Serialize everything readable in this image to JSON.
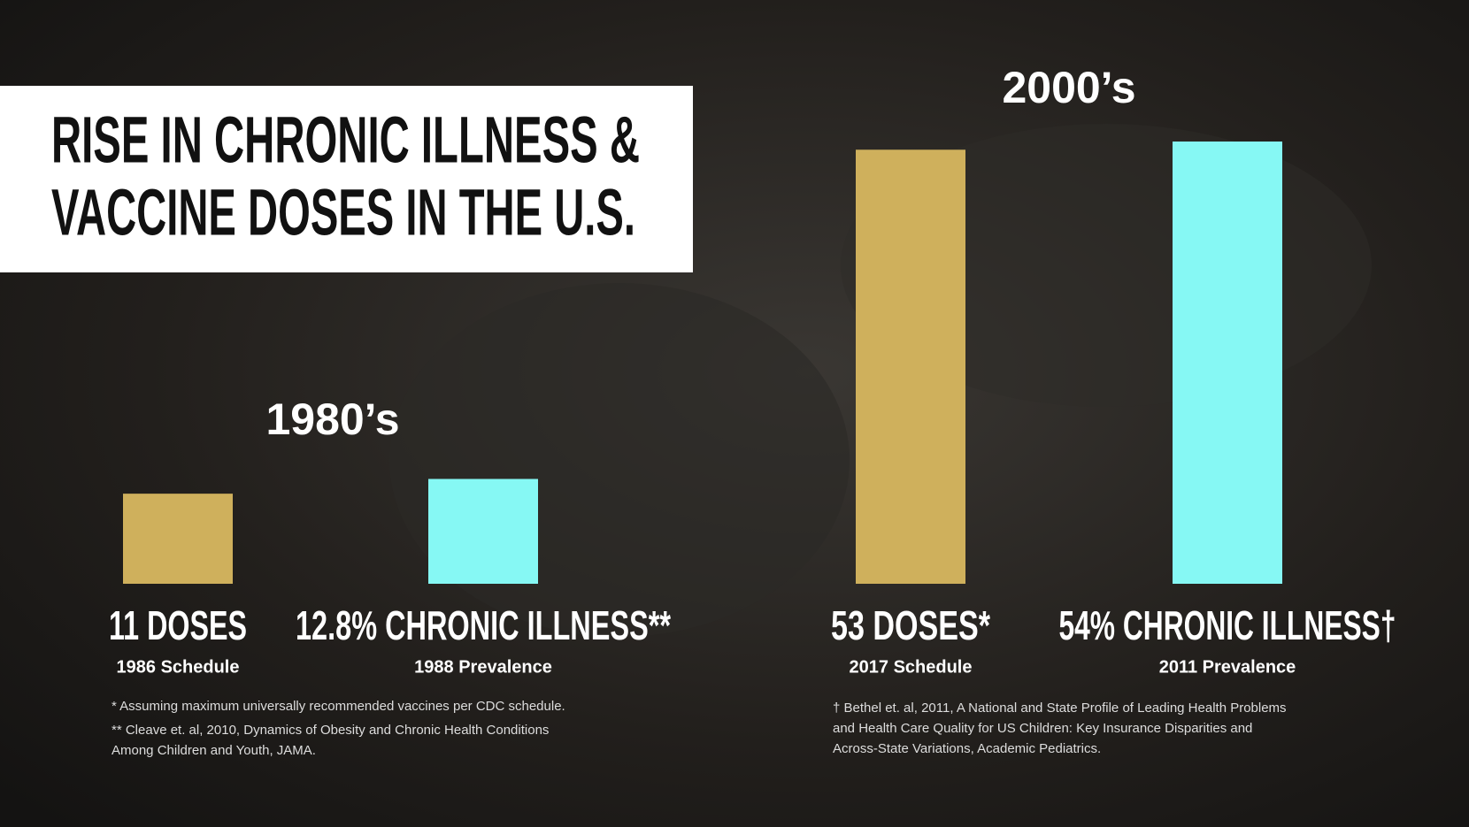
{
  "chart_data": {
    "type": "bar",
    "title": [
      "RISE IN CHRONIC ILLNESS &",
      "VACCINE DOSES IN THE U.S."
    ],
    "eras": [
      "1980’s",
      "2000’s"
    ],
    "categories": [
      "1986 Schedule",
      "1988 Prevalence",
      "2017 Schedule",
      "2011 Prevalence"
    ],
    "values": [
      11,
      12.8,
      53,
      54
    ],
    "value_labels": [
      "11 DOSES",
      "12.8% CHRONIC ILLNESS**",
      "53 DOSES*",
      "54% CHRONIC ILLNESS†"
    ],
    "colors": [
      "#cfb05c",
      "#86f8f4",
      "#cfb05c",
      "#86f8f4"
    ],
    "footnotes": [
      [
        "* Assuming maximum universally recommended vaccines per CDC schedule.",
        "** Cleave et. al, 2010, Dynamics of Obesity and Chronic Health Conditions",
        "Among Children and Youth, JAMA."
      ],
      [
        "† Bethel et. al, 2011, A National and State Profile of Leading Health Problems",
        "and Health Care Quality for US Children: Key Insurance Disparities and",
        "Across-State Variations, Academic Pediatrics."
      ]
    ]
  }
}
